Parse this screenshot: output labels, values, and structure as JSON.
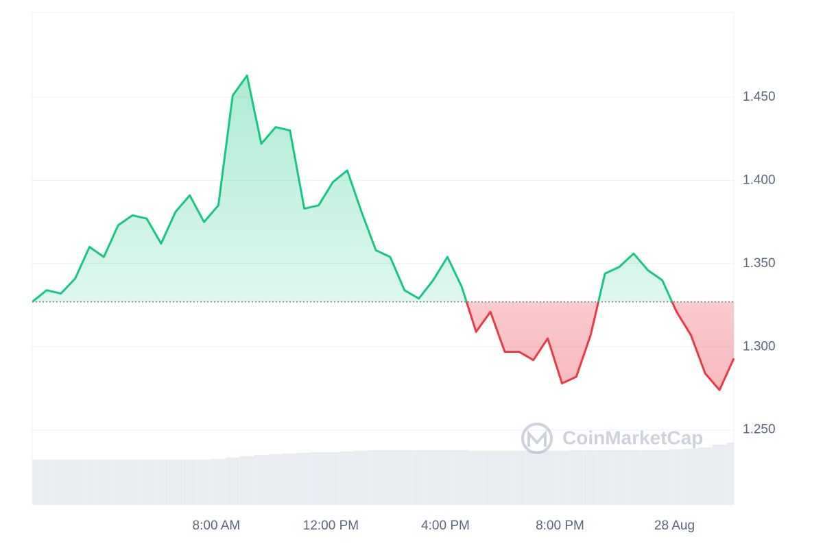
{
  "chart_data": {
    "type": "line",
    "categories": [
      null,
      null,
      null,
      null,
      null,
      null,
      null,
      null,
      null,
      null,
      null,
      null,
      null,
      "8:00 AM",
      null,
      null,
      null,
      null,
      null,
      null,
      null,
      "12:00 PM",
      null,
      null,
      null,
      null,
      null,
      null,
      null,
      "4:00 PM",
      null,
      null,
      null,
      null,
      null,
      null,
      null,
      "8:00 PM",
      null,
      null,
      null,
      null,
      null,
      null,
      null,
      "28 Aug",
      null,
      null,
      null,
      null
    ],
    "values": [
      1.327,
      1.334,
      1.332,
      1.341,
      1.36,
      1.354,
      1.373,
      1.379,
      1.377,
      1.362,
      1.381,
      1.391,
      1.375,
      1.385,
      1.451,
      1.463,
      1.422,
      1.432,
      1.43,
      1.383,
      1.385,
      1.399,
      1.406,
      1.381,
      1.358,
      1.354,
      1.334,
      1.329,
      1.34,
      1.354,
      1.336,
      1.309,
      1.321,
      1.297,
      1.297,
      1.292,
      1.305,
      1.278,
      1.282,
      1.307,
      1.344,
      1.348,
      1.356,
      1.346,
      1.34,
      1.321,
      1.307,
      1.284,
      1.274,
      1.293
    ],
    "volume": [
      66,
      66,
      66,
      66,
      66,
      66,
      66,
      66,
      66,
      66,
      66,
      66,
      66,
      67,
      69,
      71,
      73,
      74,
      75,
      76,
      77,
      77,
      78,
      79,
      80,
      80,
      80,
      80,
      80,
      80,
      80,
      79,
      79,
      79,
      79,
      79,
      79,
      79,
      80,
      80,
      80,
      80,
      80,
      80,
      80,
      81,
      82,
      84,
      88,
      91
    ],
    "volume_lim": [
      0,
      100
    ],
    "up_color": "#16c784",
    "down_color": "#ea3943",
    "volume_color": "#e9edf2",
    "ylim": [
      1.205,
      1.501
    ],
    "yticks": [
      {
        "value": 1.25,
        "label": "1.250"
      },
      {
        "value": 1.3,
        "label": "1.300"
      },
      {
        "value": 1.35,
        "label": "1.350"
      },
      {
        "value": 1.4,
        "label": "1.400"
      },
      {
        "value": 1.45,
        "label": "1.450"
      }
    ],
    "grid": true,
    "watermark": "CoinMarketCap"
  }
}
